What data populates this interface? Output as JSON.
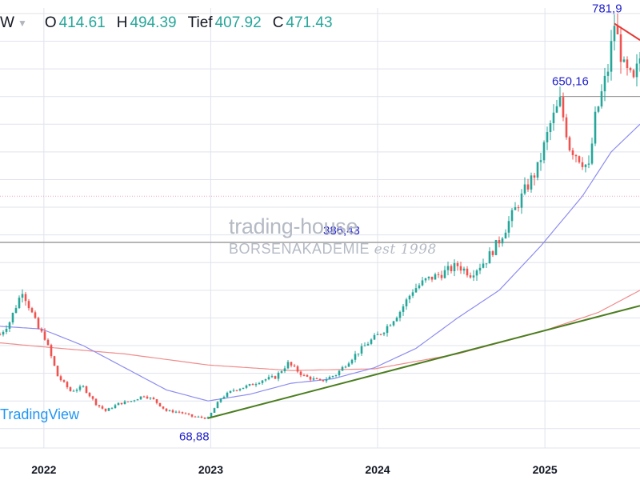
{
  "legend": {
    "interval": "W",
    "open_label": "O",
    "open_value": "414.61",
    "high_label": "H",
    "high_value": "494.39",
    "low_label": "Tief",
    "low_value": "407.92",
    "close_label": "C",
    "close_value": "471.43"
  },
  "watermark": {
    "brand": "trading-house",
    "sub": "BORSENAKADEMIE",
    "est": "est 1998"
  },
  "logo_text": "TradingView",
  "colors": {
    "up": "#26a69a",
    "down": "#ef5350",
    "ma_fast": "#8c8cf0",
    "ma_slow": "#f08c8c",
    "trendline": "#4a7d1e",
    "peak_line": "#e53935",
    "level_line": "#9e9e9e",
    "annotation": "#1e1ec8",
    "grid": "#e0e3eb",
    "axis_text": "#131722"
  },
  "chart_data": {
    "type": "candlestick",
    "x_axis": {
      "ticks": [
        "2022",
        "2023",
        "2024",
        "2025"
      ]
    },
    "y_range": [
      15,
      810
    ],
    "x_range": [
      "2021-09-27",
      "2025-07-28"
    ],
    "annotations": [
      {
        "text": "68,88",
        "date": "2022-12-26",
        "value": 68.88
      },
      {
        "text": "386,43",
        "date": "2023-06-05",
        "value": 386.43
      },
      {
        "text": "650,16",
        "date": "2025-02-03",
        "value": 650.16
      },
      {
        "text": "781,9",
        "date": "2025-06-02",
        "value": 781.9
      }
    ],
    "horizontal_lines": [
      {
        "value": 386.43,
        "style": "solid-gray"
      },
      {
        "value": 470,
        "style": "dotted-pink"
      },
      {
        "value": 650.16,
        "style": "solid-gray-short"
      }
    ],
    "trendline": {
      "from": [
        "2022-12-26",
        68.88
      ],
      "to": [
        "2025-07-28",
        272
      ]
    },
    "peak_line": {
      "from": [
        "2025-06-02",
        781.9
      ],
      "to": [
        "2025-07-28",
        752
      ]
    },
    "path_points": [
      [
        "2021-09-27",
        220
      ],
      [
        "2021-10-18",
        243
      ],
      [
        "2021-11-15",
        300
      ],
      [
        "2021-11-29",
        272
      ],
      [
        "2021-12-20",
        230
      ],
      [
        "2022-01-03",
        215
      ],
      [
        "2022-01-31",
        145
      ],
      [
        "2022-02-28",
        118
      ],
      [
        "2022-03-28",
        125
      ],
      [
        "2022-04-25",
        95
      ],
      [
        "2022-05-16",
        82
      ],
      [
        "2022-06-13",
        95
      ],
      [
        "2022-07-11",
        100
      ],
      [
        "2022-08-08",
        110
      ],
      [
        "2022-08-29",
        102
      ],
      [
        "2022-09-26",
        82
      ],
      [
        "2022-10-24",
        80
      ],
      [
        "2022-11-21",
        72
      ],
      [
        "2022-12-26",
        68.88
      ],
      [
        "2023-01-23",
        105
      ],
      [
        "2023-02-20",
        120
      ],
      [
        "2023-03-27",
        128
      ],
      [
        "2023-04-24",
        138
      ],
      [
        "2023-05-22",
        143
      ],
      [
        "2023-06-19",
        168
      ],
      [
        "2023-07-24",
        145
      ],
      [
        "2023-08-28",
        135
      ],
      [
        "2023-10-02",
        148
      ],
      [
        "2023-11-06",
        178
      ],
      [
        "2023-12-11",
        205
      ],
      [
        "2024-01-15",
        228
      ],
      [
        "2024-02-19",
        262
      ],
      [
        "2024-03-18",
        300
      ],
      [
        "2024-04-15",
        318
      ],
      [
        "2024-05-20",
        330
      ],
      [
        "2024-06-24",
        345
      ],
      [
        "2024-07-22",
        330
      ],
      [
        "2024-08-26",
        355
      ],
      [
        "2024-09-23",
        390
      ],
      [
        "2024-10-21",
        435
      ],
      [
        "2024-11-18",
        480
      ],
      [
        "2024-12-16",
        520
      ],
      [
        "2025-01-13",
        600
      ],
      [
        "2025-02-03",
        640
      ],
      [
        "2025-02-24",
        560
      ],
      [
        "2025-03-17",
        540
      ],
      [
        "2025-04-07",
        520
      ],
      [
        "2025-04-21",
        610
      ],
      [
        "2025-05-19",
        700
      ],
      [
        "2025-06-02",
        781.9
      ],
      [
        "2025-06-23",
        700
      ],
      [
        "2025-07-14",
        675
      ],
      [
        "2025-07-28",
        720
      ]
    ],
    "ma_fast_points": [
      [
        "2021-09-27",
        235
      ],
      [
        "2021-12-27",
        230
      ],
      [
        "2022-03-28",
        200
      ],
      [
        "2022-06-27",
        160
      ],
      [
        "2022-09-26",
        120
      ],
      [
        "2022-12-26",
        100
      ],
      [
        "2023-03-27",
        112
      ],
      [
        "2023-06-26",
        132
      ],
      [
        "2023-09-25",
        140
      ],
      [
        "2023-12-25",
        160
      ],
      [
        "2024-03-25",
        195
      ],
      [
        "2024-06-24",
        250
      ],
      [
        "2024-09-23",
        300
      ],
      [
        "2024-12-23",
        380
      ],
      [
        "2025-03-24",
        470
      ],
      [
        "2025-05-26",
        550
      ],
      [
        "2025-07-28",
        600
      ]
    ],
    "ma_slow_points": [
      [
        "2021-09-27",
        205
      ],
      [
        "2021-12-27",
        198
      ],
      [
        "2022-06-27",
        185
      ],
      [
        "2022-12-26",
        165
      ],
      [
        "2023-06-26",
        155
      ],
      [
        "2023-12-25",
        158
      ],
      [
        "2024-06-24",
        185
      ],
      [
        "2024-12-23",
        225
      ],
      [
        "2025-04-28",
        260
      ],
      [
        "2025-07-28",
        300
      ]
    ]
  }
}
